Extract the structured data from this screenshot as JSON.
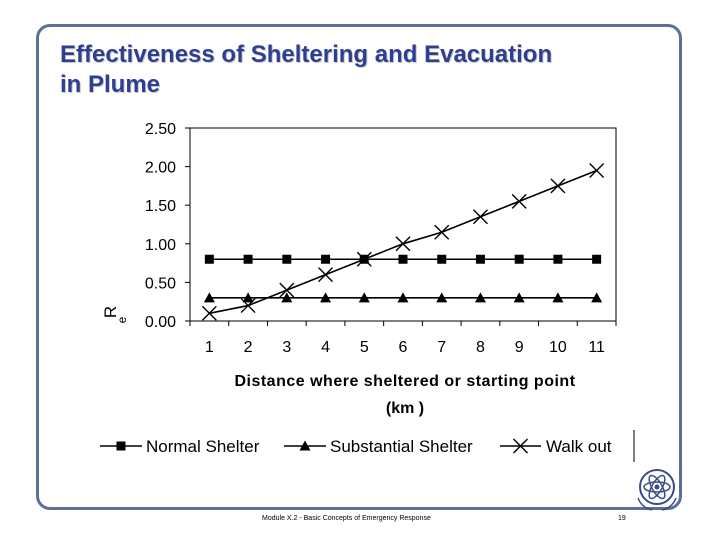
{
  "slide": {
    "title_line1": "Effectiveness of Sheltering and Evacuation",
    "title_line2": "in Plume",
    "footer": "Module X.2 - Basic Concepts of Emergency Response",
    "page_number": "19"
  },
  "colors": {
    "title": "#2e3f93",
    "frame": "#5a6f99",
    "series": "#000000"
  },
  "chart_data": {
    "type": "line",
    "title": "",
    "xlabel": "Distance where sheltered or starting point",
    "xlabel_line2": "(km )",
    "ylabel_main": "R",
    "ylabel_sub": "e",
    "x": [
      1,
      2,
      3,
      4,
      5,
      6,
      7,
      8,
      9,
      10,
      11
    ],
    "xticks": [
      "1",
      "2",
      "3",
      "4",
      "5",
      "6",
      "7",
      "8",
      "9",
      "10",
      "11"
    ],
    "ylim": [
      0,
      2.5
    ],
    "yticks": [
      "0.00",
      "0.50",
      "1.00",
      "1.50",
      "2.00",
      "2.50"
    ],
    "grid": false,
    "legend_position": "bottom",
    "series": [
      {
        "name": "Normal Shelter",
        "marker": "square",
        "values": [
          0.8,
          0.8,
          0.8,
          0.8,
          0.8,
          0.8,
          0.8,
          0.8,
          0.8,
          0.8,
          0.8
        ]
      },
      {
        "name": "Substantial Shelter",
        "marker": "triangle",
        "values": [
          0.3,
          0.3,
          0.3,
          0.3,
          0.3,
          0.3,
          0.3,
          0.3,
          0.3,
          0.3,
          0.3
        ]
      },
      {
        "name": "Walk out",
        "marker": "x",
        "values": [
          0.1,
          0.2,
          0.4,
          0.6,
          0.8,
          1.0,
          1.15,
          1.35,
          1.55,
          1.75,
          1.95
        ]
      }
    ]
  }
}
